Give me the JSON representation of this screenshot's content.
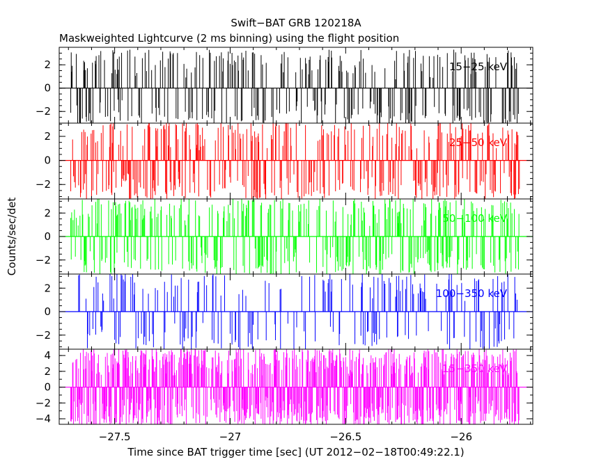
{
  "chart_data": {
    "type": "line",
    "title": "Swift−BAT GRB 120218A",
    "subtitle": "Maskweighted Lightcurve (2 ms binning) using the flight position",
    "xlabel": "Time since BAT trigger time [sec] (UT 2012−02−18T00:49:22.1)",
    "ylabel": "Counts/sec/det",
    "xlim": [
      -27.74,
      -25.69
    ],
    "x_ticks": [
      -27.5,
      -27,
      -26.5,
      -26
    ],
    "x_tick_labels": [
      "−27.5",
      "−27",
      "−26.5",
      "−26"
    ],
    "bin_width_s": 0.002,
    "grid": false,
    "panels": [
      {
        "name": "15−25 keV",
        "color": "#000000",
        "ylim": [
          -3.0,
          3.5
        ],
        "yticks": [
          2,
          0,
          -2
        ],
        "ytick_labels": [
          "2",
          "0",
          "−2"
        ],
        "amplitude": 3.0,
        "density": 0.35,
        "seed": 11
      },
      {
        "name": "25−50 keV",
        "color": "#ff0000",
        "ylim": [
          -3.2,
          3.1
        ],
        "yticks": [
          2,
          0,
          -2
        ],
        "ytick_labels": [
          "2",
          "0",
          "−2"
        ],
        "amplitude": 3.0,
        "density": 0.42,
        "seed": 23
      },
      {
        "name": "50−100 keV",
        "color": "#00ff00",
        "ylim": [
          -3.2,
          3.2
        ],
        "yticks": [
          2,
          0,
          -2
        ],
        "ytick_labels": [
          "2",
          "0",
          "−2"
        ],
        "amplitude": 3.0,
        "density": 0.4,
        "seed": 37
      },
      {
        "name": "100−350 keV",
        "color": "#0000ff",
        "ylim": [
          -3.2,
          3.2
        ],
        "yticks": [
          2,
          0,
          -2
        ],
        "ytick_labels": [
          "2",
          "0",
          "−2"
        ],
        "amplitude": 3.0,
        "density": 0.25,
        "seed": 51
      },
      {
        "name": "15−350 keV",
        "color": "#ff00ff",
        "ylim": [
          -4.7,
          4.8
        ],
        "yticks": [
          4,
          2,
          0,
          -2,
          -4
        ],
        "ytick_labels": [
          "4",
          "2",
          "0",
          "−2",
          "−4"
        ],
        "amplitude": 4.6,
        "density": 0.85,
        "seed": 67
      }
    ]
  }
}
